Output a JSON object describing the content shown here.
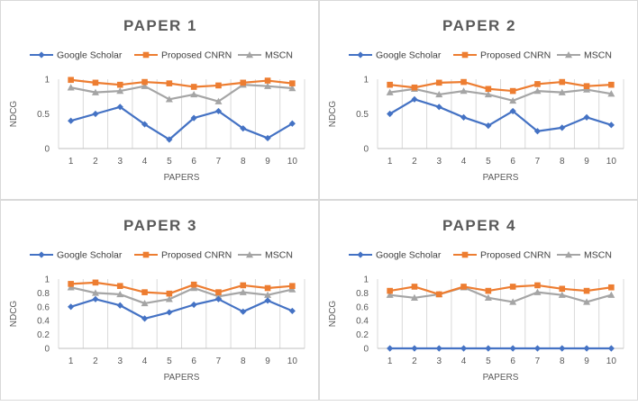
{
  "chart_data": [
    {
      "type": "line",
      "title": "PAPER 1",
      "xlabel": "PAPERS",
      "ylabel": "NDCG",
      "categories": [
        "1",
        "2",
        "3",
        "4",
        "5",
        "6",
        "7",
        "8",
        "9",
        "10"
      ],
      "yticks": [
        "0",
        "0.5",
        "1"
      ],
      "ylim": [
        0,
        1
      ],
      "grid": "vertical",
      "legend_position": "top",
      "series": [
        {
          "name": "Google Scholar",
          "color": "#4472c4",
          "marker": "diamond",
          "values": [
            0.4,
            0.5,
            0.6,
            0.35,
            0.13,
            0.44,
            0.54,
            0.29,
            0.15,
            0.36
          ]
        },
        {
          "name": "Proposed CNRN",
          "color": "#ed7d31",
          "marker": "square",
          "values": [
            0.99,
            0.95,
            0.92,
            0.96,
            0.94,
            0.89,
            0.91,
            0.95,
            0.98,
            0.94
          ]
        },
        {
          "name": "MSCN",
          "color": "#a5a5a5",
          "marker": "triangle",
          "values": [
            0.88,
            0.81,
            0.83,
            0.9,
            0.71,
            0.78,
            0.68,
            0.92,
            0.9,
            0.87
          ]
        }
      ]
    },
    {
      "type": "line",
      "title": "PAPER 2",
      "xlabel": "PAPERS",
      "ylabel": "NDCG",
      "categories": [
        "1",
        "2",
        "3",
        "4",
        "5",
        "6",
        "7",
        "8",
        "9",
        "10"
      ],
      "yticks": [
        "0",
        "0.5",
        "1"
      ],
      "ylim": [
        0,
        1
      ],
      "grid": "vertical",
      "legend_position": "top",
      "series": [
        {
          "name": "Google Scholar",
          "color": "#4472c4",
          "marker": "diamond",
          "values": [
            0.5,
            0.71,
            0.6,
            0.45,
            0.33,
            0.54,
            0.25,
            0.3,
            0.45,
            0.34
          ]
        },
        {
          "name": "Proposed CNRN",
          "color": "#ed7d31",
          "marker": "square",
          "values": [
            0.92,
            0.88,
            0.95,
            0.96,
            0.86,
            0.83,
            0.93,
            0.96,
            0.9,
            0.92
          ]
        },
        {
          "name": "MSCN",
          "color": "#a5a5a5",
          "marker": "triangle",
          "values": [
            0.81,
            0.86,
            0.78,
            0.83,
            0.78,
            0.69,
            0.83,
            0.81,
            0.85,
            0.79
          ]
        }
      ]
    },
    {
      "type": "line",
      "title": "PAPER 3",
      "xlabel": "PAPERS",
      "ylabel": "NDCG",
      "categories": [
        "1",
        "2",
        "3",
        "4",
        "5",
        "6",
        "7",
        "8",
        "9",
        "10"
      ],
      "yticks": [
        "0",
        "0.2",
        "0.4",
        "0.6",
        "0.8",
        "1"
      ],
      "ylim": [
        0,
        1
      ],
      "grid": "vertical",
      "legend_position": "top",
      "series": [
        {
          "name": "Google Scholar",
          "color": "#4472c4",
          "marker": "diamond",
          "values": [
            0.6,
            0.71,
            0.62,
            0.43,
            0.52,
            0.63,
            0.71,
            0.53,
            0.69,
            0.54
          ]
        },
        {
          "name": "Proposed CNRN",
          "color": "#ed7d31",
          "marker": "square",
          "values": [
            0.93,
            0.95,
            0.9,
            0.81,
            0.79,
            0.92,
            0.81,
            0.91,
            0.87,
            0.9
          ]
        },
        {
          "name": "MSCN",
          "color": "#a5a5a5",
          "marker": "triangle",
          "values": [
            0.88,
            0.8,
            0.78,
            0.65,
            0.71,
            0.87,
            0.75,
            0.81,
            0.77,
            0.85
          ]
        }
      ]
    },
    {
      "type": "line",
      "title": "PAPER 4",
      "xlabel": "PAPERS",
      "ylabel": "NDCG",
      "categories": [
        "1",
        "2",
        "3",
        "4",
        "5",
        "6",
        "7",
        "8",
        "9",
        "10"
      ],
      "yticks": [
        "0",
        "0.2",
        "0.4",
        "0.6",
        "0.8",
        "1"
      ],
      "ylim": [
        0,
        1
      ],
      "grid": "vertical",
      "legend_position": "top",
      "series": [
        {
          "name": "Google Scholar",
          "color": "#4472c4",
          "marker": "diamond",
          "values": [
            0,
            0,
            0,
            0,
            0,
            0,
            0,
            0,
            0,
            0
          ]
        },
        {
          "name": "Proposed CNRN",
          "color": "#ed7d31",
          "marker": "square",
          "values": [
            0.83,
            0.89,
            0.78,
            0.89,
            0.83,
            0.89,
            0.91,
            0.86,
            0.83,
            0.88
          ]
        },
        {
          "name": "MSCN",
          "color": "#a5a5a5",
          "marker": "triangle",
          "values": [
            0.77,
            0.73,
            0.78,
            0.88,
            0.73,
            0.67,
            0.81,
            0.77,
            0.67,
            0.77
          ]
        }
      ]
    }
  ]
}
